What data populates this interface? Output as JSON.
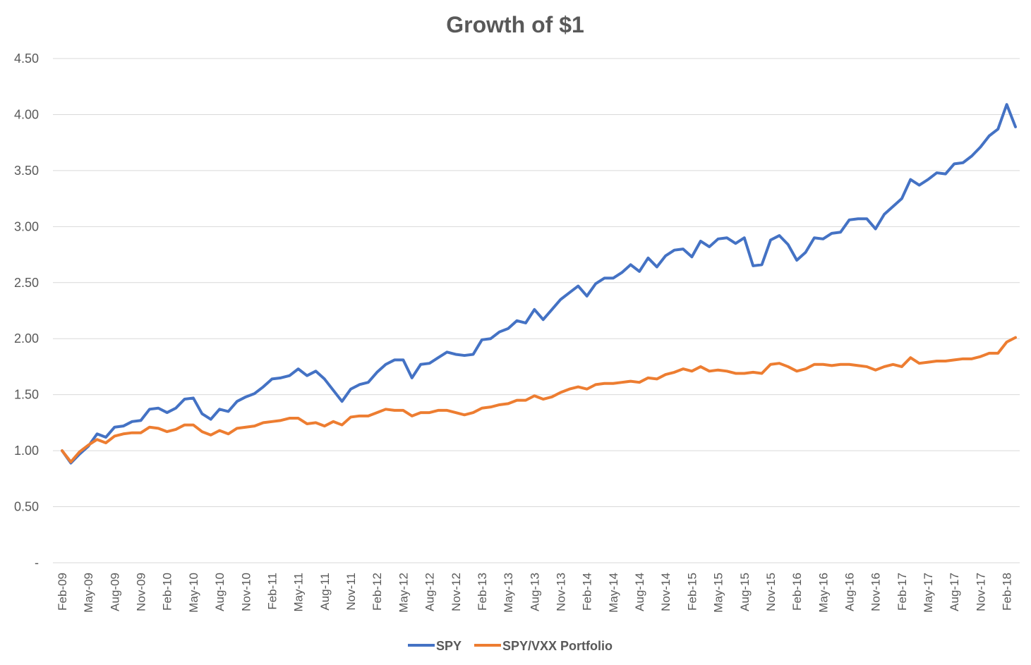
{
  "chart_data": {
    "type": "line",
    "title": "Growth of $1",
    "xlabel": "",
    "ylabel": "",
    "ylim": [
      0,
      4.5
    ],
    "y_ticks": [
      0,
      0.5,
      1.0,
      1.5,
      2.0,
      2.5,
      3.0,
      3.5,
      4.0,
      4.5
    ],
    "y_tick_labels": [
      "-",
      "0.50",
      "1.00",
      "1.50",
      "2.00",
      "2.50",
      "3.00",
      "3.50",
      "4.00",
      "4.50"
    ],
    "x_tick_labels": [
      "Feb-09",
      "May-09",
      "Aug-09",
      "Nov-09",
      "Feb-10",
      "May-10",
      "Aug-10",
      "Nov-10",
      "Feb-11",
      "May-11",
      "Aug-11",
      "Nov-11",
      "Feb-12",
      "May-12",
      "Aug-12",
      "Nov-12",
      "Feb-13",
      "May-13",
      "Aug-13",
      "Nov-13",
      "Feb-14",
      "May-14",
      "Aug-14",
      "Nov-14",
      "Feb-15",
      "May-15",
      "Aug-15",
      "Nov-15",
      "Feb-16",
      "May-16",
      "Aug-16",
      "Nov-16",
      "Feb-17",
      "May-17",
      "Aug-17",
      "Nov-17",
      "Feb-18"
    ],
    "x_start": "Feb-09",
    "x_end": "Apr-18",
    "grid": true,
    "legend_position": "bottom",
    "series": [
      {
        "name": "SPY",
        "color": "#4472c4",
        "values": [
          1.0,
          0.89,
          0.97,
          1.04,
          1.15,
          1.12,
          1.21,
          1.22,
          1.26,
          1.27,
          1.37,
          1.38,
          1.34,
          1.38,
          1.46,
          1.47,
          1.33,
          1.28,
          1.37,
          1.35,
          1.44,
          1.48,
          1.51,
          1.57,
          1.64,
          1.65,
          1.67,
          1.73,
          1.67,
          1.71,
          1.64,
          1.54,
          1.44,
          1.55,
          1.59,
          1.61,
          1.7,
          1.77,
          1.81,
          1.81,
          1.65,
          1.77,
          1.78,
          1.83,
          1.88,
          1.86,
          1.85,
          1.86,
          1.99,
          2.0,
          2.06,
          2.09,
          2.16,
          2.14,
          2.26,
          2.17,
          2.26,
          2.35,
          2.41,
          2.47,
          2.38,
          2.49,
          2.54,
          2.54,
          2.59,
          2.66,
          2.6,
          2.72,
          2.64,
          2.74,
          2.79,
          2.8,
          2.73,
          2.87,
          2.82,
          2.89,
          2.9,
          2.85,
          2.9,
          2.65,
          2.66,
          2.88,
          2.92,
          2.84,
          2.7,
          2.77,
          2.9,
          2.89,
          2.94,
          2.95,
          3.06,
          3.07,
          3.07,
          2.98,
          3.11,
          3.18,
          3.25,
          3.42,
          3.37,
          3.42,
          3.48,
          3.47,
          3.56,
          3.57,
          3.63,
          3.71,
          3.81,
          3.87,
          4.09,
          3.89
        ]
      },
      {
        "name": "SPY/VXX Portfolio",
        "color": "#ed7d31",
        "values": [
          1.0,
          0.9,
          0.99,
          1.05,
          1.1,
          1.07,
          1.13,
          1.15,
          1.16,
          1.16,
          1.21,
          1.2,
          1.17,
          1.19,
          1.23,
          1.23,
          1.17,
          1.14,
          1.18,
          1.15,
          1.2,
          1.21,
          1.22,
          1.25,
          1.26,
          1.27,
          1.29,
          1.29,
          1.24,
          1.25,
          1.22,
          1.26,
          1.23,
          1.3,
          1.31,
          1.31,
          1.34,
          1.37,
          1.36,
          1.36,
          1.31,
          1.34,
          1.34,
          1.36,
          1.36,
          1.34,
          1.32,
          1.34,
          1.38,
          1.39,
          1.41,
          1.42,
          1.45,
          1.45,
          1.49,
          1.46,
          1.48,
          1.52,
          1.55,
          1.57,
          1.55,
          1.59,
          1.6,
          1.6,
          1.61,
          1.62,
          1.61,
          1.65,
          1.64,
          1.68,
          1.7,
          1.73,
          1.71,
          1.75,
          1.71,
          1.72,
          1.71,
          1.69,
          1.69,
          1.7,
          1.69,
          1.77,
          1.78,
          1.75,
          1.71,
          1.73,
          1.77,
          1.77,
          1.76,
          1.77,
          1.77,
          1.76,
          1.75,
          1.72,
          1.75,
          1.77,
          1.75,
          1.83,
          1.78,
          1.79,
          1.8,
          1.8,
          1.81,
          1.82,
          1.82,
          1.84,
          1.87,
          1.87,
          1.97,
          2.01
        ]
      }
    ]
  }
}
